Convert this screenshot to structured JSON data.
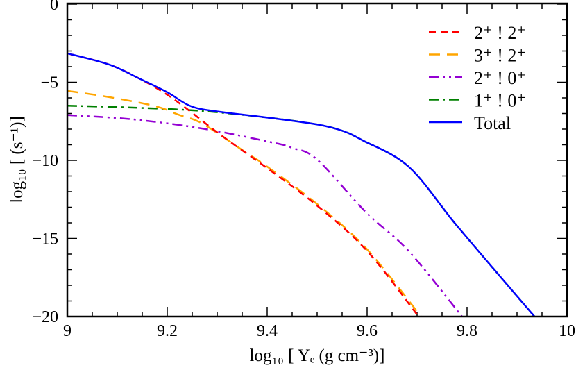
{
  "chart_data": {
    "type": "line",
    "title": "",
    "xlabel": "log₁₀ [   Yₑ (g cm⁻³)]",
    "ylabel": "log₁₀ [    (s⁻¹)]",
    "xlim": [
      9,
      10
    ],
    "ylim": [
      -20,
      0
    ],
    "xticks": [
      "9",
      "9.2",
      "9.4",
      "9.6",
      "9.8",
      "10"
    ],
    "yticks": [
      "0",
      "-5",
      "-10",
      "-15",
      "-20"
    ],
    "grid": false,
    "legend_position": "top-right",
    "series": [
      {
        "name": "2⁺ !  2⁺",
        "color": "#ff0000",
        "dash": "dashed",
        "x": [
          9.0,
          9.084,
          9.144,
          9.2,
          9.245,
          9.293,
          9.343,
          9.4,
          9.5,
          9.6,
          9.703
        ],
        "y": [
          -3.15,
          -3.87,
          -4.76,
          -5.8,
          -6.84,
          -8.04,
          -9.2,
          -10.5,
          -12.9,
          -15.8,
          -20
        ]
      },
      {
        "name": "3⁺ !  2⁺",
        "color": "#ffa500",
        "dash": "longdash",
        "x": [
          9.0,
          9.084,
          9.176,
          9.222,
          9.27,
          9.353,
          9.4,
          9.5,
          9.6,
          9.708
        ],
        "y": [
          -5.55,
          -5.95,
          -6.53,
          -7.07,
          -7.64,
          -9.4,
          -10.4,
          -12.8,
          -15.7,
          -20
        ]
      },
      {
        "name": "2⁺ !  0⁺",
        "color": "#9400d3",
        "dash": "dashdotdot",
        "x": [
          9.0,
          9.13,
          9.27,
          9.408,
          9.45,
          9.5,
          9.597,
          9.683,
          9.79
        ],
        "y": [
          -7.1,
          -7.37,
          -7.96,
          -8.84,
          -9.2,
          -9.95,
          -13.3,
          -15.8,
          -20
        ]
      },
      {
        "name": "1⁺ !  0⁺",
        "color": "#008000",
        "dash": "dashdot",
        "x": [
          9.0,
          9.13,
          9.27,
          9.408,
          9.5,
          9.55,
          9.59,
          9.683,
          9.775,
          9.868,
          9.935
        ],
        "y": [
          -6.5,
          -6.62,
          -6.84,
          -7.29,
          -7.7,
          -8.1,
          -8.7,
          -10.4,
          -14.0,
          -17.5,
          -20
        ]
      },
      {
        "name": "Total",
        "color": "#0000ff",
        "dash": "solid",
        "x": [
          9.0,
          9.084,
          9.144,
          9.2,
          9.245,
          9.293,
          9.408,
          9.5,
          9.55,
          9.59,
          9.683,
          9.775,
          9.868,
          9.935
        ],
        "y": [
          -3.15,
          -3.87,
          -4.76,
          -5.64,
          -6.5,
          -6.84,
          -7.29,
          -7.7,
          -8.1,
          -8.7,
          -10.4,
          -14.0,
          -17.5,
          -20
        ]
      }
    ]
  }
}
